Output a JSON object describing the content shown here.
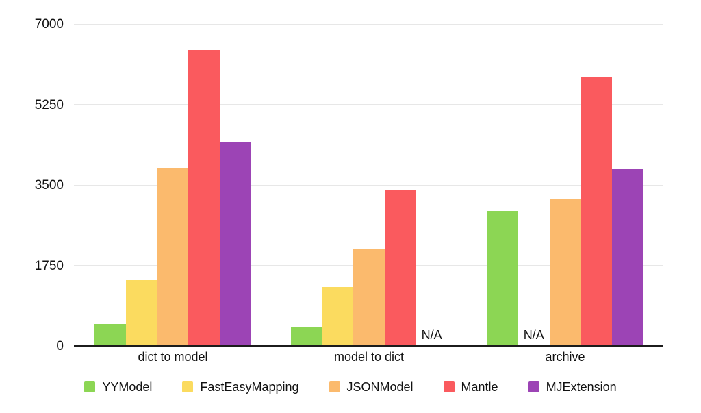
{
  "chart_data": {
    "type": "bar",
    "title": "",
    "xlabel": "",
    "ylabel": "",
    "categories": [
      "dict to model",
      "model to dict",
      "archive"
    ],
    "series": [
      {
        "name": "YYModel",
        "color": "#8cd654",
        "values": [
          480,
          420,
          2930
        ]
      },
      {
        "name": "FastEasyMapping",
        "color": "#fbdb5f",
        "values": [
          1430,
          1280,
          null
        ]
      },
      {
        "name": "JSONModel",
        "color": "#fbba6d",
        "values": [
          3860,
          2120,
          3200
        ]
      },
      {
        "name": "Mantle",
        "color": "#fa5a5e",
        "values": [
          6430,
          3400,
          5840
        ]
      },
      {
        "name": "MJExtension",
        "color": "#9c44b5",
        "values": [
          4440,
          null,
          3840
        ]
      }
    ],
    "y_ticks": [
      0,
      1750,
      3500,
      5250,
      7000
    ],
    "ylim": [
      0,
      7000
    ],
    "na_label": "N/A",
    "grid": "horizontal",
    "legend_position": "bottom",
    "colors": {
      "background": "#ffffff",
      "gridline": "#e7e7e7",
      "axis_line": "#1c1c1c",
      "text": "#111111"
    }
  }
}
